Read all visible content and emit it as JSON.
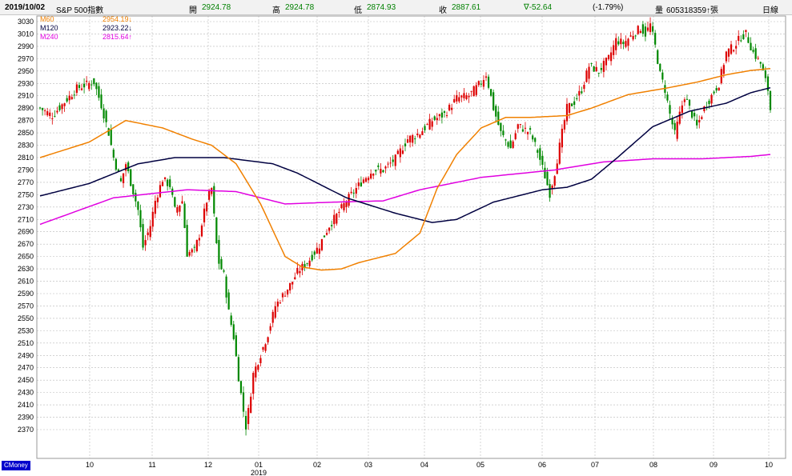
{
  "header": {
    "date": "2019/10/02",
    "index_name": "S&P 500指數",
    "open_label": "開",
    "open_value": "2924.78",
    "high_label": "高",
    "high_value": "2924.78",
    "low_label": "低",
    "low_value": "2874.93",
    "close_label": "收",
    "close_value": "2887.61",
    "change": "∇-52.64",
    "change_pct": "(-1.79%)",
    "volume_label": "量",
    "volume_value": "605318359↑張",
    "period": "日線"
  },
  "brand": "CMoney",
  "colors": {
    "up": "#dd0000",
    "down": "#008800",
    "m60": "#f08000",
    "m120": "#000040",
    "m240": "#e000e0",
    "grid": "#b8b8b8"
  },
  "chart_data": {
    "type": "candlestick",
    "title": "",
    "ylim": [
      2345,
      3040
    ],
    "y_ticks": [
      3030,
      3010,
      2990,
      2970,
      2950,
      2930,
      2910,
      2890,
      2870,
      2850,
      2830,
      2810,
      2790,
      2770,
      2750,
      2730,
      2710,
      2690,
      2670,
      2650,
      2630,
      2610,
      2590,
      2570,
      2550,
      2530,
      2510,
      2490,
      2470,
      2450,
      2430,
      2410,
      2390,
      2370
    ],
    "x_ticks": [
      "10",
      "11",
      "12",
      "01",
      "02",
      "03",
      "04",
      "05",
      "06",
      "07",
      "08",
      "09",
      "10"
    ],
    "year_label": "2019",
    "legend": [
      {
        "name": "M60",
        "value": "2954.19↓",
        "color": "#f08000"
      },
      {
        "name": "M120",
        "value": "2923.22↓",
        "color": "#000040"
      },
      {
        "name": "M240",
        "value": "2815.64↑",
        "color": "#e000e0"
      }
    ],
    "m60_anchors": [
      [
        0,
        2810
      ],
      [
        20,
        2835
      ],
      [
        35,
        2870
      ],
      [
        50,
        2858
      ],
      [
        62,
        2840
      ],
      [
        70,
        2830
      ],
      [
        80,
        2800
      ],
      [
        90,
        2735
      ],
      [
        100,
        2650
      ],
      [
        107,
        2633
      ],
      [
        115,
        2628
      ],
      [
        123,
        2630
      ],
      [
        130,
        2640
      ],
      [
        145,
        2655
      ],
      [
        155,
        2688
      ],
      [
        162,
        2760
      ],
      [
        170,
        2815
      ],
      [
        180,
        2858
      ],
      [
        190,
        2875
      ],
      [
        200,
        2875
      ],
      [
        215,
        2878
      ],
      [
        225,
        2890
      ],
      [
        240,
        2912
      ],
      [
        255,
        2922
      ],
      [
        268,
        2932
      ],
      [
        280,
        2944
      ],
      [
        290,
        2951
      ],
      [
        298,
        2954
      ]
    ],
    "m120_anchors": [
      [
        0,
        2748
      ],
      [
        20,
        2768
      ],
      [
        40,
        2800
      ],
      [
        55,
        2810
      ],
      [
        75,
        2810
      ],
      [
        95,
        2800
      ],
      [
        105,
        2785
      ],
      [
        125,
        2745
      ],
      [
        145,
        2720
      ],
      [
        160,
        2705
      ],
      [
        170,
        2710
      ],
      [
        185,
        2738
      ],
      [
        205,
        2758
      ],
      [
        215,
        2762
      ],
      [
        225,
        2775
      ],
      [
        235,
        2808
      ],
      [
        250,
        2860
      ],
      [
        265,
        2885
      ],
      [
        280,
        2898
      ],
      [
        290,
        2915
      ],
      [
        298,
        2923
      ]
    ],
    "m240_anchors": [
      [
        0,
        2702
      ],
      [
        30,
        2745
      ],
      [
        60,
        2758
      ],
      [
        80,
        2755
      ],
      [
        100,
        2735
      ],
      [
        120,
        2738
      ],
      [
        140,
        2740
      ],
      [
        155,
        2758
      ],
      [
        180,
        2778
      ],
      [
        210,
        2790
      ],
      [
        230,
        2803
      ],
      [
        250,
        2808
      ],
      [
        270,
        2808
      ],
      [
        290,
        2812
      ],
      [
        298,
        2815
      ]
    ],
    "candle_anchors": [
      [
        0,
        2890
      ],
      [
        5,
        2878
      ],
      [
        10,
        2900
      ],
      [
        15,
        2922
      ],
      [
        20,
        2930
      ],
      [
        22,
        2932
      ],
      [
        25,
        2895
      ],
      [
        28,
        2850
      ],
      [
        30,
        2810
      ],
      [
        33,
        2770
      ],
      [
        35,
        2800
      ],
      [
        38,
        2755
      ],
      [
        40,
        2725
      ],
      [
        42,
        2665
      ],
      [
        45,
        2700
      ],
      [
        47,
        2740
      ],
      [
        50,
        2775
      ],
      [
        53,
        2765
      ],
      [
        55,
        2725
      ],
      [
        58,
        2740
      ],
      [
        60,
        2655
      ],
      [
        63,
        2660
      ],
      [
        65,
        2685
      ],
      [
        68,
        2740
      ],
      [
        70,
        2760
      ],
      [
        72,
        2670
      ],
      [
        73,
        2640
      ],
      [
        75,
        2620
      ],
      [
        77,
        2560
      ],
      [
        79,
        2520
      ],
      [
        81,
        2455
      ],
      [
        83,
        2400
      ],
      [
        84,
        2375
      ],
      [
        85,
        2400
      ],
      [
        87,
        2460
      ],
      [
        90,
        2492
      ],
      [
        93,
        2525
      ],
      [
        96,
        2570
      ],
      [
        100,
        2592
      ],
      [
        103,
        2610
      ],
      [
        105,
        2625
      ],
      [
        110,
        2645
      ],
      [
        114,
        2668
      ],
      [
        118,
        2700
      ],
      [
        122,
        2722
      ],
      [
        125,
        2740
      ],
      [
        128,
        2755
      ],
      [
        132,
        2775
      ],
      [
        136,
        2790
      ],
      [
        140,
        2790
      ],
      [
        145,
        2808
      ],
      [
        150,
        2840
      ],
      [
        155,
        2850
      ],
      [
        160,
        2870
      ],
      [
        165,
        2880
      ],
      [
        170,
        2906
      ],
      [
        175,
        2910
      ],
      [
        180,
        2932
      ],
      [
        182,
        2945
      ],
      [
        185,
        2890
      ],
      [
        188,
        2850
      ],
      [
        192,
        2825
      ],
      [
        195,
        2862
      ],
      [
        200,
        2850
      ],
      [
        203,
        2820
      ],
      [
        206,
        2780
      ],
      [
        208,
        2752
      ],
      [
        210,
        2786
      ],
      [
        213,
        2850
      ],
      [
        215,
        2890
      ],
      [
        218,
        2900
      ],
      [
        221,
        2920
      ],
      [
        224,
        2958
      ],
      [
        228,
        2950
      ],
      [
        232,
        2970
      ],
      [
        235,
        3000
      ],
      [
        238,
        2995
      ],
      [
        242,
        3010
      ],
      [
        245,
        3020
      ],
      [
        247,
        3010
      ],
      [
        249,
        3025
      ],
      [
        251,
        2990
      ],
      [
        253,
        2945
      ],
      [
        255,
        2920
      ],
      [
        257,
        2880
      ],
      [
        259,
        2848
      ],
      [
        261,
        2880
      ],
      [
        263,
        2910
      ],
      [
        266,
        2880
      ],
      [
        268,
        2860
      ],
      [
        271,
        2890
      ],
      [
        274,
        2910
      ],
      [
        277,
        2930
      ],
      [
        280,
        2980
      ],
      [
        283,
        2990
      ],
      [
        286,
        3005
      ],
      [
        288,
        3010
      ],
      [
        291,
        2980
      ],
      [
        294,
        2962
      ],
      [
        297,
        2920
      ],
      [
        298,
        2888
      ]
    ]
  }
}
